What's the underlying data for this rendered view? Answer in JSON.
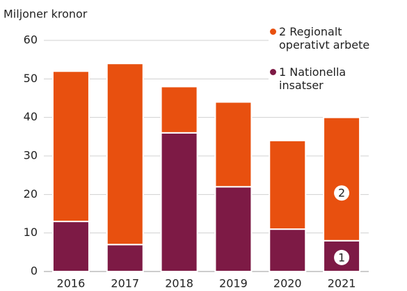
{
  "chart_data": {
    "type": "stacked_bar",
    "y_label": "Miljoner kronor",
    "categories": [
      "2016",
      "2017",
      "2018",
      "2019",
      "2020",
      "2021"
    ],
    "series": [
      {
        "name": "1 Nationella insatser",
        "color": "#7d1a45",
        "values": [
          13,
          7,
          36,
          22,
          11,
          8
        ],
        "marker": "1"
      },
      {
        "name": "2 Regionalt operativt arbete",
        "color": "#e8500f",
        "values": [
          39,
          47,
          12,
          22,
          23,
          32
        ],
        "marker": "2"
      }
    ],
    "ylim": [
      0,
      60
    ],
    "yticks": [
      0,
      10,
      20,
      30,
      40,
      50,
      60
    ],
    "grid": true
  }
}
